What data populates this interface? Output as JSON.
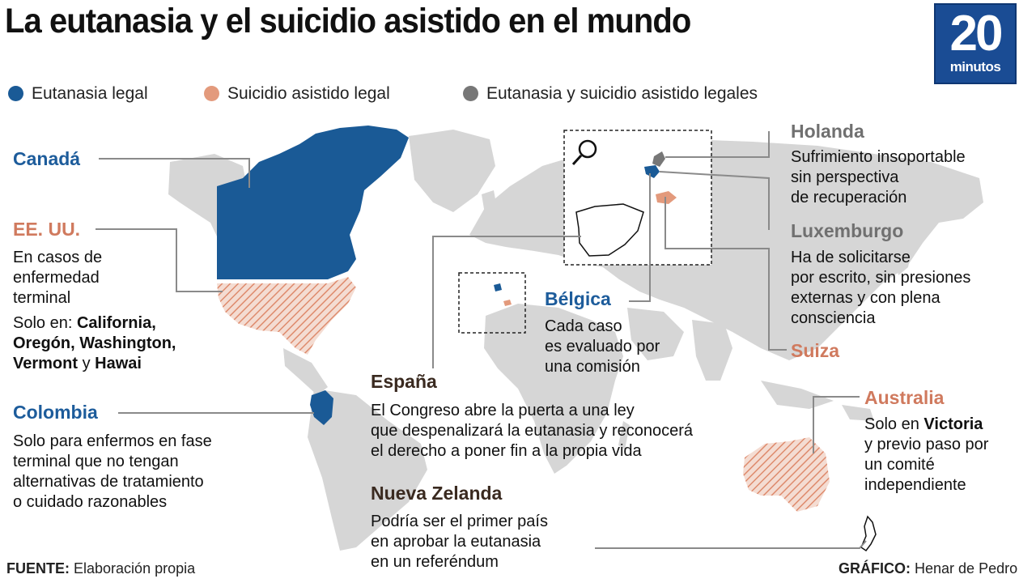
{
  "title": "La eutanasia y el suicidio asistido en el mundo",
  "logo": {
    "number": "20",
    "word": "minutos"
  },
  "legend": [
    {
      "label": "Eutanasia legal",
      "color": "#1a5a96"
    },
    {
      "label": "Suicidio asistido legal",
      "color": "#e39a7c"
    },
    {
      "label": "Eutanasia y suicidio asistido legales",
      "color": "#777777"
    }
  ],
  "colors": {
    "land": "#d6d6d6",
    "euthanasia": "#1a5a96",
    "assisted": "#e39a7c",
    "both": "#777777",
    "leader": "#8a8a8a"
  },
  "icons": {
    "zoom": "magnifier-icon"
  },
  "countries": {
    "canada": {
      "name": "Canadá"
    },
    "usa": {
      "name": "EE. UU.",
      "text": [
        "En casos de",
        "enfermedad",
        "terminal"
      ],
      "only_in": "Solo en:",
      "states_line1": "California,",
      "states_line2": "Oregón, Washington,",
      "states_line3_a": "Vermont",
      "states_line3_b": "y",
      "states_line3_c": "Hawai"
    },
    "colombia": {
      "name": "Colombia",
      "text": [
        "Solo para enfermos en fase",
        "terminal que no tengan",
        "alternativas de tratamiento",
        "o cuidado razonables"
      ]
    },
    "netherlands": {
      "name": "Holanda",
      "text": [
        "Sufrimiento insoportable",
        "sin perspectiva",
        "de recuperación"
      ]
    },
    "luxembourg": {
      "name": "Luxemburgo",
      "text": [
        "Ha de solicitarse",
        "por escrito, sin presiones",
        "externas y con plena",
        "consciencia"
      ]
    },
    "switzerland": {
      "name": "Suiza"
    },
    "belgium": {
      "name": "Bélgica",
      "text": [
        "Cada caso",
        "es evaluado por",
        "una comisión"
      ]
    },
    "spain": {
      "name": "España",
      "text": [
        "El Congreso abre la puerta a una ley",
        "que despenalizará la eutanasia y reconocerá",
        "el derecho a poner fin a la propia vida"
      ]
    },
    "australia": {
      "name": "Australia",
      "line1_a": "Solo en",
      "line1_b": "Victoria",
      "text": [
        "y previo paso por",
        "un comité",
        "independiente"
      ]
    },
    "new_zealand": {
      "name": "Nueva Zelanda",
      "text": [
        "Podría ser el primer país",
        "en aprobar la eutanasia",
        "en un referéndum"
      ]
    }
  },
  "footer": {
    "source_label": "FUENTE:",
    "source_value": "Elaboración propia",
    "credit_label": "GRÁFICO:",
    "credit_value": "Henar de Pedro"
  }
}
